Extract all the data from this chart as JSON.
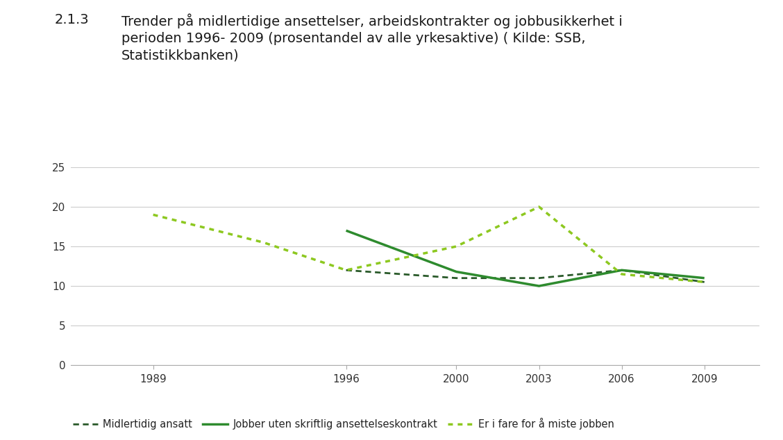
{
  "title_number": "2.1.3",
  "title_text": "Trender på midlertidige ansettelser, arbeidskontrakter og jobbusikkerhet i\nperioden 1996- 2009 (prosentandel av alle yrkesaktive) ( Kilde: SSB,\nStatistikkbanken)",
  "background_color": "#ffffff",
  "series": {
    "midlertidig_ansatt": {
      "label": "Midlertidig ansatt",
      "x": [
        1996,
        2000,
        2003,
        2006,
        2009
      ],
      "y": [
        12.0,
        11.0,
        11.0,
        12.0,
        10.5
      ],
      "color": "#2a5a2a",
      "linestyle": "dotted_dash",
      "linewidth": 2.0
    },
    "uten_kontrakt": {
      "label": "Jobber uten skriftlig ansettelseskontrakt",
      "x": [
        1996,
        2000,
        2003,
        2006,
        2009
      ],
      "y": [
        17.0,
        11.8,
        10.0,
        12.0,
        11.0
      ],
      "color": "#2e8b2e",
      "linestyle": "solid",
      "linewidth": 2.5
    },
    "fare_for_jobb": {
      "label": "Er i fare for å miste jobben",
      "x": [
        1989,
        1993,
        1996,
        2000,
        2003,
        2006,
        2009
      ],
      "y": [
        19.0,
        15.5,
        12.0,
        15.0,
        20.0,
        11.5,
        10.5
      ],
      "color": "#8dc820",
      "linestyle": "dotted",
      "linewidth": 2.5
    }
  },
  "xlim": [
    1986,
    2011
  ],
  "ylim": [
    0,
    25
  ],
  "yticks": [
    0,
    5,
    10,
    15,
    20,
    25
  ],
  "xticks": [
    1989,
    1996,
    2000,
    2003,
    2006,
    2009
  ],
  "grid_color": "#cccccc",
  "tick_label_fontsize": 11,
  "legend_fontsize": 10.5,
  "title_fontsize": 14,
  "title_number_fontsize": 14
}
